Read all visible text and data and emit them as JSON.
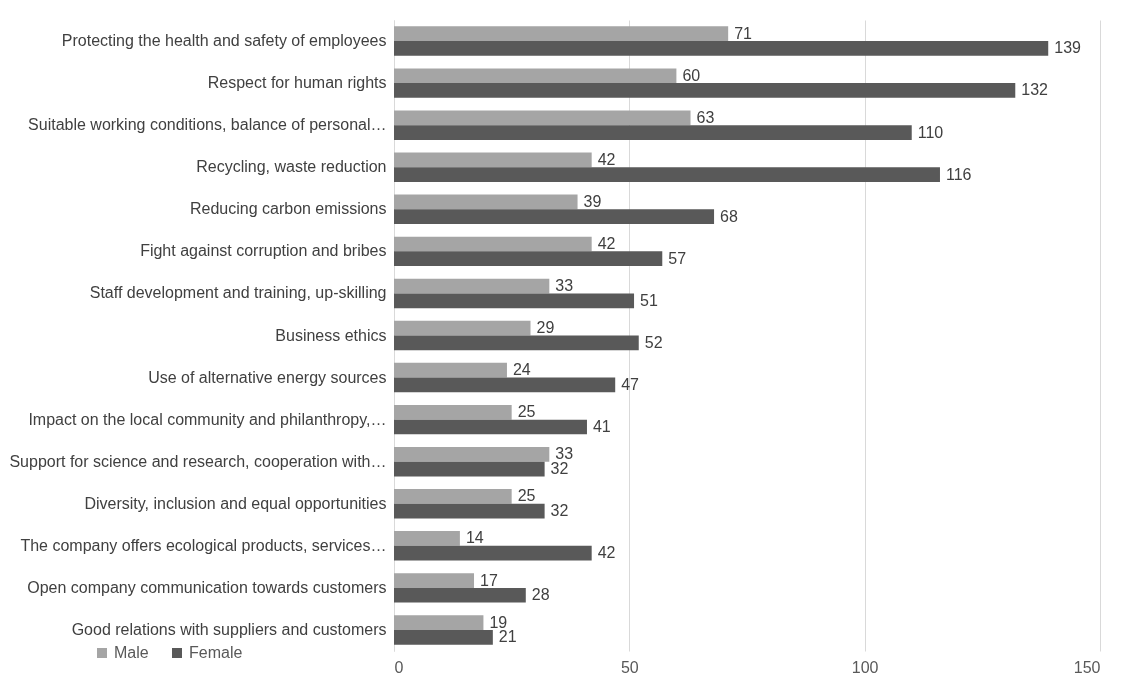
{
  "chart_data": {
    "type": "bar",
    "orientation": "horizontal",
    "categories": [
      "Protecting the health and safety of employees",
      "Respect for human rights",
      "Suitable working conditions, balance of personal…",
      "Recycling, waste reduction",
      "Reducing carbon emissions",
      "Fight against corruption and bribes",
      "Staff development and training, up-skilling",
      "Business ethics",
      "Use of alternative energy sources",
      "Impact on the local community and philanthropy,…",
      "Support for science and research, cooperation with…",
      "Diversity, inclusion and equal opportunities",
      "The company offers ecological products, services…",
      "Open company communication towards customers",
      "Good relations with suppliers and customers"
    ],
    "series": [
      {
        "name": "Male",
        "color": "#a5a5a5",
        "values": [
          71,
          60,
          63,
          42,
          39,
          42,
          33,
          29,
          24,
          25,
          33,
          25,
          14,
          17,
          19
        ]
      },
      {
        "name": "Female",
        "color": "#595959",
        "values": [
          139,
          132,
          110,
          116,
          68,
          57,
          51,
          52,
          47,
          41,
          32,
          32,
          42,
          28,
          21
        ]
      }
    ],
    "xlim": [
      0,
      150
    ],
    "xticks": [
      0,
      50,
      100,
      150
    ],
    "grid": "x",
    "legend": "bottom left",
    "data_labels": true
  }
}
